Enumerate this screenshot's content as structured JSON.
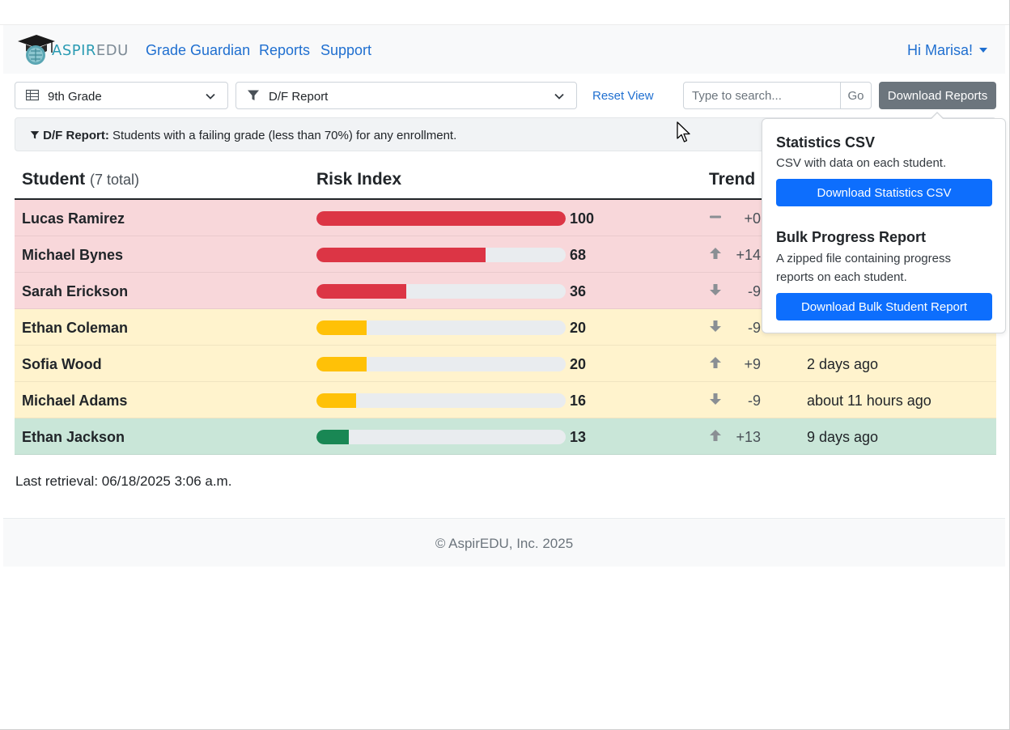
{
  "colors": {
    "link": "#1f6fd0",
    "danger_bar": "#dc3545",
    "warning_bar": "#ffc107",
    "success_bar": "#198754",
    "danger_row": "#f8d7da",
    "warning_row": "#fff3cd",
    "success_row": "#c9e6d8",
    "primary_button": "#0d6efd",
    "secondary_button": "#6c757d"
  },
  "navbar": {
    "logo_text_a": "ASPIR",
    "logo_text_b": "EDU",
    "links": [
      "Grade Guardian",
      "Reports",
      "Support"
    ],
    "user_greeting": "Hi Marisa!"
  },
  "toolbar": {
    "grade_select": {
      "icon": "table-icon",
      "value": "9th Grade"
    },
    "report_select": {
      "icon": "filter-icon",
      "value": "D/F Report"
    },
    "reset_label": "Reset View",
    "search_placeholder": "Type to search...",
    "go_label": "Go",
    "download_label": "Download Reports"
  },
  "info_bar": {
    "label": "D/F Report:",
    "text": "Students with a failing grade (less than 70%) for any enrollment."
  },
  "table": {
    "headers": {
      "student": "Student",
      "student_count": "(7 total)",
      "risk": "Risk Index",
      "trend": "Trend"
    },
    "rows": [
      {
        "name": "Lucas Ramirez",
        "risk": 100,
        "level": "danger",
        "trend_dir": "flat",
        "trend": "+0",
        "updated": ""
      },
      {
        "name": "Michael Bynes",
        "risk": 68,
        "level": "danger",
        "trend_dir": "up",
        "trend": "+14",
        "updated": ""
      },
      {
        "name": "Sarah Erickson",
        "risk": 36,
        "level": "danger",
        "trend_dir": "down",
        "trend": "-9",
        "updated": ""
      },
      {
        "name": "Ethan Coleman",
        "risk": 20,
        "level": "warning",
        "trend_dir": "down",
        "trend": "-9",
        "updated": ""
      },
      {
        "name": "Sofia Wood",
        "risk": 20,
        "level": "warning",
        "trend_dir": "up",
        "trend": "+9",
        "updated": "2 days ago"
      },
      {
        "name": "Michael Adams",
        "risk": 16,
        "level": "warning",
        "trend_dir": "down",
        "trend": "-9",
        "updated": "about 11 hours ago"
      },
      {
        "name": "Ethan Jackson",
        "risk": 13,
        "level": "success",
        "trend_dir": "up",
        "trend": "+13",
        "updated": "9 days ago"
      }
    ]
  },
  "last_retrieval": "Last retrieval: 06/18/2025 3:06 a.m.",
  "footer": "© AspirEDU, Inc. 2025",
  "popover": {
    "stats_title": "Statistics CSV",
    "stats_desc": "CSV with data on each student.",
    "stats_button": "Download Statistics CSV",
    "bulk_title": "Bulk Progress Report",
    "bulk_desc": "A zipped file containing progress reports on each student.",
    "bulk_button": "Download Bulk Student Report"
  }
}
